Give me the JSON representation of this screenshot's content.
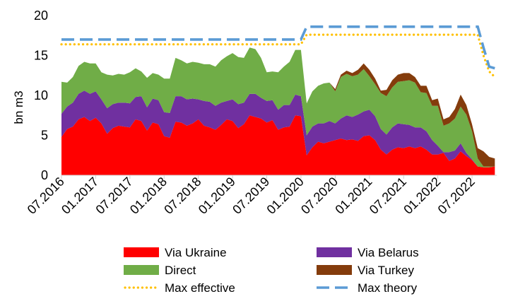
{
  "chart_data": {
    "type": "area",
    "ylabel": "bn m3",
    "xlabel": "",
    "title": "",
    "ylim": [
      0,
      20
    ],
    "yticks": [
      0,
      5,
      10,
      15,
      20
    ],
    "x_tick_labels": [
      "07.2016",
      "01.2017",
      "07.2017",
      "01.2018",
      "07.2018",
      "01.2019",
      "07.2019",
      "01.2020",
      "07.2020",
      "01.2021",
      "07.2021",
      "01.2022",
      "07.2022"
    ],
    "x_start": "07.2016",
    "grid": false,
    "legend_position": "bottom",
    "x": [
      "07.2016",
      "08.2016",
      "09.2016",
      "10.2016",
      "11.2016",
      "12.2016",
      "01.2017",
      "02.2017",
      "03.2017",
      "04.2017",
      "05.2017",
      "06.2017",
      "07.2017",
      "08.2017",
      "09.2017",
      "10.2017",
      "11.2017",
      "12.2017",
      "01.2018",
      "02.2018",
      "03.2018",
      "04.2018",
      "05.2018",
      "06.2018",
      "07.2018",
      "08.2018",
      "09.2018",
      "10.2018",
      "11.2018",
      "12.2018",
      "01.2019",
      "02.2019",
      "03.2019",
      "04.2019",
      "05.2019",
      "06.2019",
      "07.2019",
      "08.2019",
      "09.2019",
      "10.2019",
      "11.2019",
      "12.2019",
      "01.2020",
      "02.2020",
      "03.2020",
      "04.2020",
      "05.2020",
      "06.2020",
      "07.2020",
      "08.2020",
      "09.2020",
      "10.2020",
      "11.2020",
      "12.2020",
      "01.2021",
      "02.2021",
      "03.2021",
      "04.2021",
      "05.2021",
      "06.2021",
      "07.2021",
      "08.2021",
      "09.2021",
      "10.2021",
      "11.2021",
      "12.2021",
      "01.2022",
      "02.2022",
      "03.2022",
      "04.2022",
      "05.2022",
      "06.2022",
      "07.2022",
      "08.2022",
      "09.2022",
      "10.2022",
      "11.2022"
    ],
    "stacked_series": [
      {
        "name": "Via Ukraine",
        "color": "#FF0000",
        "values": [
          4.8,
          5.8,
          6.1,
          7.0,
          7.3,
          6.8,
          7.2,
          6.5,
          5.2,
          5.9,
          6.2,
          6.1,
          6.0,
          7.0,
          6.8,
          5.6,
          6.6,
          6.4,
          4.9,
          4.7,
          6.7,
          6.6,
          6.2,
          6.5,
          7.0,
          6.2,
          6.0,
          5.7,
          6.3,
          7.0,
          6.8,
          5.9,
          6.4,
          7.5,
          7.3,
          7.1,
          6.6,
          6.9,
          5.7,
          6.0,
          6.1,
          7.5,
          7.4,
          2.5,
          3.5,
          4.2,
          4.0,
          4.2,
          4.4,
          4.6,
          4.4,
          4.5,
          4.3,
          4.9,
          5.0,
          4.4,
          3.2,
          2.6,
          3.2,
          3.5,
          3.4,
          3.6,
          3.4,
          3.6,
          3.2,
          2.6,
          2.6,
          2.8,
          1.8,
          2.1,
          3.0,
          2.4,
          1.9,
          1.1,
          1.0,
          1.0,
          1.1
        ]
      },
      {
        "name": "Via Belarus",
        "color": "#7030A0",
        "values": [
          2.9,
          2.8,
          3.0,
          3.2,
          3.3,
          3.4,
          3.3,
          3.0,
          3.2,
          3.0,
          2.9,
          3.0,
          3.0,
          2.8,
          3.1,
          2.9,
          3.0,
          3.0,
          3.0,
          3.1,
          3.2,
          3.3,
          3.3,
          3.1,
          2.5,
          3.1,
          3.2,
          3.0,
          2.8,
          2.3,
          2.7,
          3.0,
          2.7,
          2.7,
          2.9,
          2.6,
          2.7,
          2.5,
          2.5,
          2.8,
          2.7,
          2.6,
          2.5,
          2.5,
          2.6,
          2.3,
          2.5,
          2.6,
          2.1,
          2.5,
          3.1,
          2.8,
          3.3,
          3.1,
          3.2,
          3.0,
          2.6,
          2.5,
          2.8,
          3.0,
          3.0,
          2.7,
          2.6,
          2.4,
          2.3,
          1.8,
          1.1,
          0.1,
          1.1,
          1.0,
          1.0,
          0.4,
          0.1,
          0,
          0,
          0,
          0
        ]
      },
      {
        "name": "Direct",
        "color": "#70AD47",
        "values": [
          4.0,
          3.0,
          3.2,
          3.5,
          3.6,
          3.8,
          3.5,
          3.4,
          4.2,
          3.6,
          3.6,
          3.5,
          3.9,
          3.6,
          3.1,
          3.7,
          3.2,
          3.2,
          4.2,
          4.3,
          4.8,
          4.5,
          4.5,
          4.6,
          4.6,
          4.6,
          4.7,
          4.9,
          5.3,
          5.6,
          5.8,
          5.9,
          5.6,
          5.8,
          5.6,
          5.0,
          3.6,
          3.6,
          4.7,
          4.8,
          5.4,
          5.6,
          5.8,
          4.0,
          4.4,
          4.7,
          5.0,
          4.8,
          4.0,
          5.2,
          5.2,
          5.1,
          5.0,
          5.3,
          4.2,
          4.0,
          4.5,
          4.8,
          5.0,
          5.2,
          5.4,
          5.6,
          5.6,
          4.4,
          4.8,
          4.3,
          5.0,
          3.3,
          3.6,
          4.0,
          4.6,
          4.8,
          3.5,
          1.0,
          0.1,
          0.1,
          0
        ]
      },
      {
        "name": "Via Turkey",
        "color": "#843C0C",
        "values": [
          0,
          0,
          0,
          0,
          0,
          0,
          0,
          0,
          0,
          0,
          0,
          0,
          0,
          0,
          0,
          0,
          0,
          0,
          0,
          0,
          0,
          0,
          0,
          0,
          0,
          0,
          0,
          0,
          0,
          0,
          0,
          0,
          0,
          0,
          0,
          0,
          0,
          0,
          0,
          0,
          0,
          0,
          0,
          0,
          0,
          0,
          0,
          0,
          0.3,
          0.3,
          0.4,
          0.4,
          0.6,
          0.7,
          0.8,
          0.7,
          0.3,
          0.8,
          0.9,
          0.9,
          1.0,
          0.9,
          0.7,
          0.8,
          0.9,
          0.7,
          0.9,
          0.8,
          0.8,
          1.2,
          1.5,
          1.2,
          0.9,
          1.3,
          1.9,
          1.2,
          1.0
        ]
      }
    ],
    "line_series": [
      {
        "name": "Max effective",
        "color": "#FFC000",
        "style": "dotted",
        "values": [
          16.4,
          16.4,
          16.4,
          16.4,
          16.4,
          16.4,
          16.4,
          16.4,
          16.4,
          16.4,
          16.4,
          16.4,
          16.4,
          16.4,
          16.4,
          16.4,
          16.4,
          16.4,
          16.4,
          16.4,
          16.4,
          16.4,
          16.4,
          16.4,
          16.4,
          16.4,
          16.4,
          16.4,
          16.4,
          16.4,
          16.4,
          16.4,
          16.4,
          16.4,
          16.4,
          16.4,
          16.4,
          16.4,
          16.4,
          16.4,
          16.4,
          16.4,
          16.4,
          17.6,
          17.6,
          17.6,
          17.6,
          17.6,
          17.6,
          17.6,
          17.6,
          17.6,
          17.6,
          17.6,
          17.6,
          17.6,
          17.6,
          17.6,
          17.6,
          17.6,
          17.6,
          17.6,
          17.6,
          17.6,
          17.6,
          17.6,
          17.6,
          17.6,
          17.6,
          17.6,
          17.6,
          17.6,
          17.6,
          17.6,
          15.0,
          13.0,
          12.3
        ]
      },
      {
        "name": "Max theory",
        "color": "#5B9BD5",
        "style": "dashed",
        "values": [
          17.0,
          17.0,
          17.0,
          17.0,
          17.0,
          17.0,
          17.0,
          17.0,
          17.0,
          17.0,
          17.0,
          17.0,
          17.0,
          17.0,
          17.0,
          17.0,
          17.0,
          17.0,
          17.0,
          17.0,
          17.0,
          17.0,
          17.0,
          17.0,
          17.0,
          17.0,
          17.0,
          17.0,
          17.0,
          17.0,
          17.0,
          17.0,
          17.0,
          17.0,
          17.0,
          17.0,
          17.0,
          17.0,
          17.0,
          17.0,
          17.0,
          17.0,
          17.0,
          18.6,
          18.6,
          18.6,
          18.6,
          18.6,
          18.6,
          18.6,
          18.6,
          18.6,
          18.6,
          18.6,
          18.6,
          18.6,
          18.6,
          18.6,
          18.6,
          18.6,
          18.6,
          18.6,
          18.6,
          18.6,
          18.6,
          18.6,
          18.6,
          18.6,
          18.6,
          18.6,
          18.6,
          18.6,
          18.6,
          18.6,
          16.0,
          13.6,
          13.4
        ]
      }
    ],
    "legend": [
      "Via Ukraine",
      "Via Belarus",
      "Direct",
      "Via Turkey",
      "Max effective",
      "Max theory"
    ]
  }
}
